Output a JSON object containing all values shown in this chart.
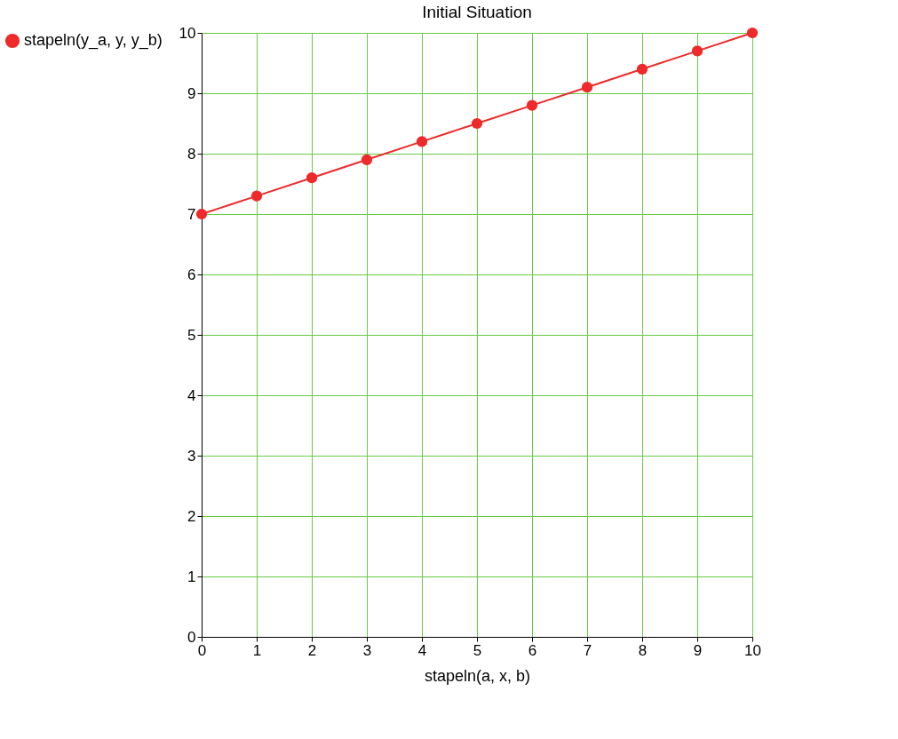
{
  "chart_data": {
    "type": "line",
    "title": "Initial Situation",
    "xlabel": "stapeln(a, x, b)",
    "x": [
      0,
      1,
      2,
      3,
      4,
      5,
      6,
      7,
      8,
      9,
      10
    ],
    "series": [
      {
        "name": "stapeln(y_a, y, y_b)",
        "color": "#ee2a2a",
        "values": [
          7,
          7.3,
          7.6,
          7.9,
          8.2,
          8.5,
          8.8,
          9.1,
          9.4,
          9.7,
          10
        ]
      }
    ],
    "xlim": [
      0,
      10
    ],
    "ylim": [
      0,
      10
    ],
    "xticks": [
      0,
      1,
      2,
      3,
      4,
      5,
      6,
      7,
      8,
      9,
      10
    ],
    "yticks": [
      0,
      1,
      2,
      3,
      4,
      5,
      6,
      7,
      8,
      9,
      10
    ],
    "grid": true,
    "legend": "left",
    "marker": "circle",
    "line_style": "solid"
  }
}
